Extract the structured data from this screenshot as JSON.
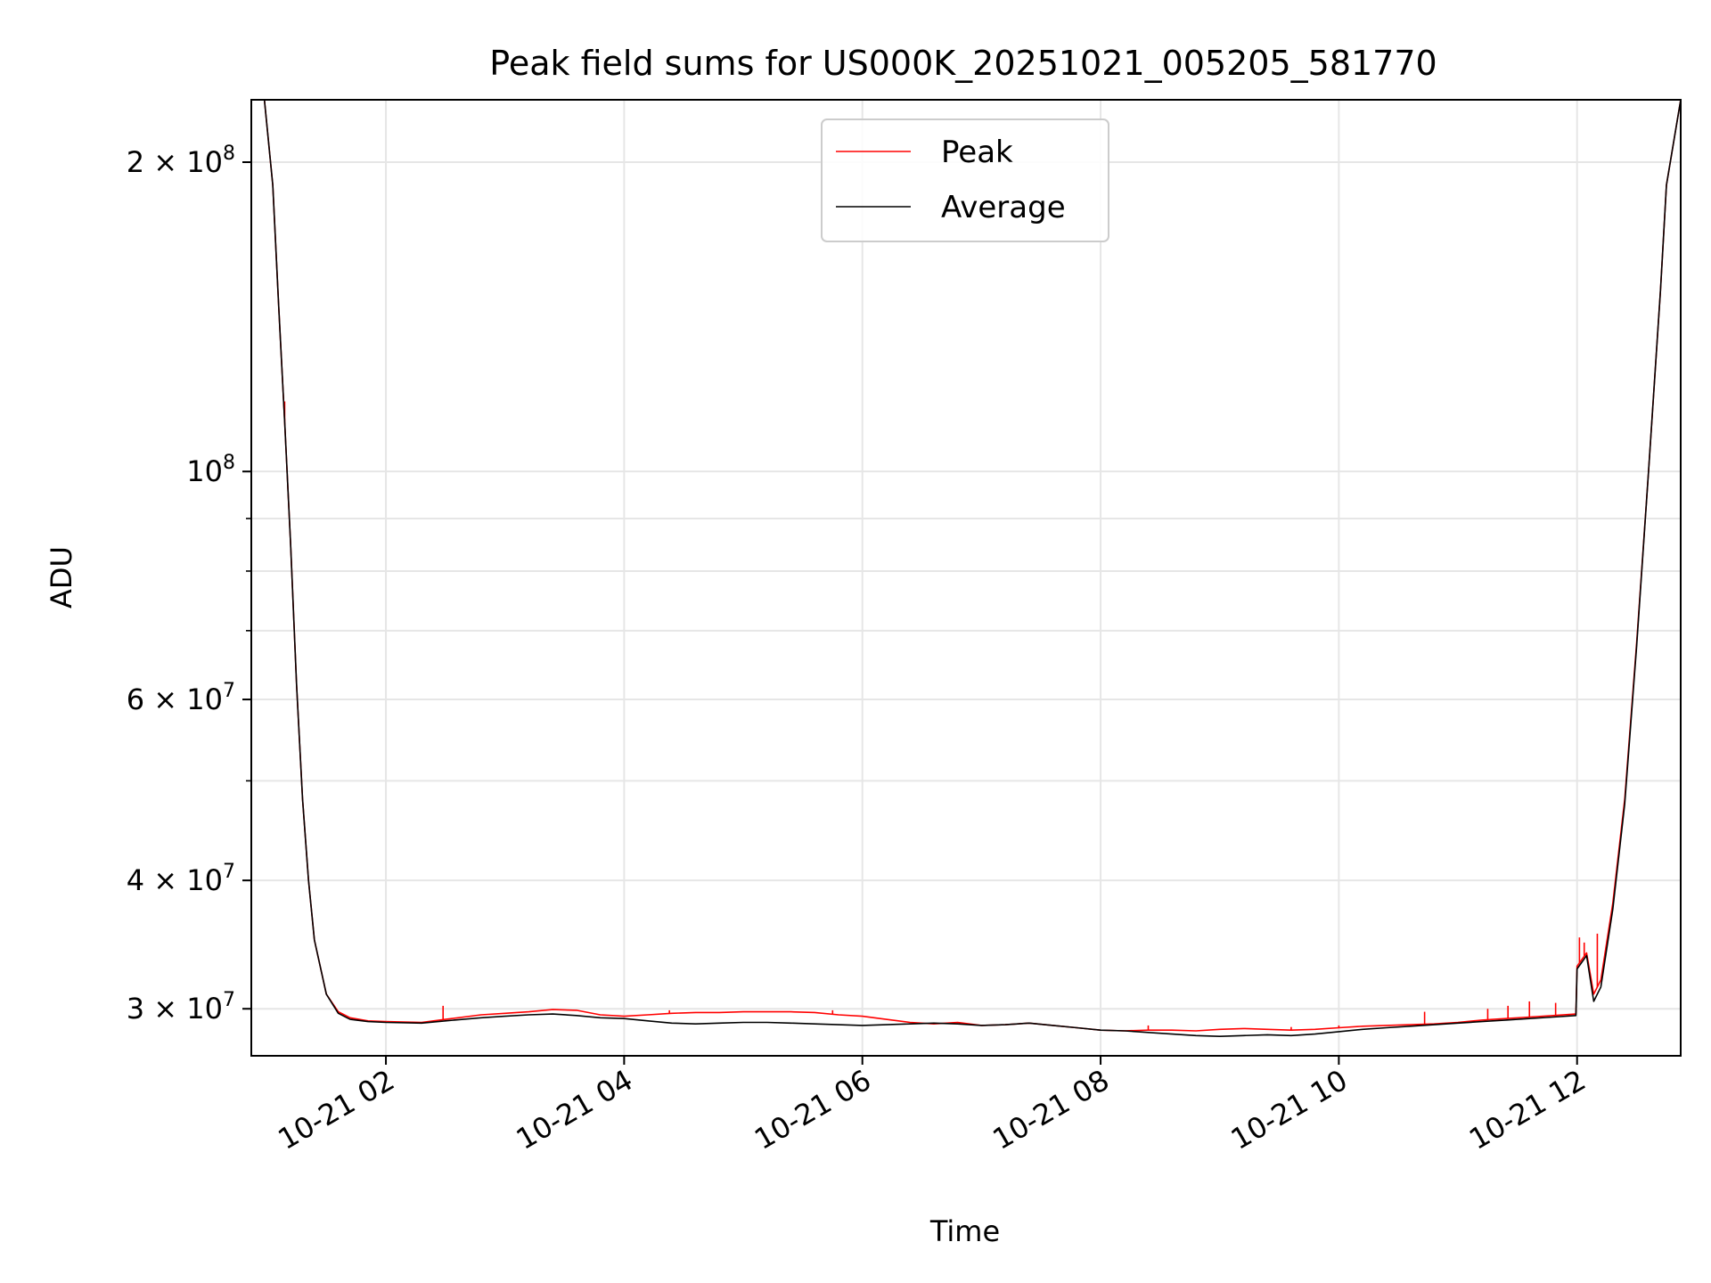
{
  "chart_data": {
    "type": "line",
    "title": "Peak field sums for US000K_20251021_005205_581770",
    "xlabel": "Time",
    "ylabel": "ADU",
    "yscale": "log",
    "grid": true,
    "legend_position": "top-center",
    "x_unit": "hours after 2025-10-21 00:00",
    "xlim": [
      0.87,
      12.87
    ],
    "ylim": [
      27000000,
      230000000
    ],
    "x_ticks": [
      {
        "value": 2,
        "label": "10-21 02"
      },
      {
        "value": 4,
        "label": "10-21 04"
      },
      {
        "value": 6,
        "label": "10-21 06"
      },
      {
        "value": 8,
        "label": "10-21 08"
      },
      {
        "value": 10,
        "label": "10-21 10"
      },
      {
        "value": 12,
        "label": "10-21 12"
      }
    ],
    "y_major_ticks": [
      {
        "value": 30000000,
        "mant": "3",
        "exp": "7"
      },
      {
        "value": 40000000,
        "mant": "4",
        "exp": "7"
      },
      {
        "value": 60000000,
        "mant": "6",
        "exp": "7"
      },
      {
        "value": 100000000,
        "mant": "",
        "exp": "8"
      },
      {
        "value": 200000000,
        "mant": "2",
        "exp": "8"
      }
    ],
    "y_minor_ticks": [
      50000000,
      70000000,
      80000000,
      90000000
    ],
    "series": [
      {
        "name": "Peak",
        "color": "#ff0000",
        "x": [
          0.87,
          0.98,
          1.05,
          1.1,
          1.15,
          1.2,
          1.25,
          1.3,
          1.35,
          1.4,
          1.5,
          1.6,
          1.7,
          1.85,
          2.0,
          2.3,
          2.5,
          2.8,
          3.0,
          3.2,
          3.4,
          3.6,
          3.8,
          4.0,
          4.2,
          4.4,
          4.6,
          4.8,
          5.0,
          5.2,
          5.4,
          5.6,
          5.8,
          6.0,
          6.2,
          6.4,
          6.6,
          6.8,
          7.0,
          7.2,
          7.4,
          7.6,
          7.8,
          8.0,
          8.2,
          8.4,
          8.6,
          8.8,
          9.0,
          9.2,
          9.4,
          9.6,
          9.8,
          10.0,
          10.2,
          10.4,
          10.6,
          10.8,
          11.0,
          11.2,
          11.4,
          11.6,
          11.8,
          11.99,
          12.0,
          12.08,
          12.14,
          12.2,
          12.3,
          12.4,
          12.5,
          12.6,
          12.7,
          12.75,
          12.87
        ],
        "y": [
          230000000,
          230000000,
          190000000,
          145000000,
          112000000,
          85000000,
          62000000,
          48000000,
          40000000,
          35000000,
          31000000,
          29800000,
          29400000,
          29200000,
          29150000,
          29100000,
          29300000,
          29600000,
          29700000,
          29800000,
          29950000,
          29900000,
          29600000,
          29500000,
          29600000,
          29700000,
          29750000,
          29750000,
          29800000,
          29800000,
          29800000,
          29750000,
          29600000,
          29500000,
          29300000,
          29100000,
          29000000,
          29100000,
          28900000,
          28950000,
          29050000,
          28900000,
          28750000,
          28600000,
          28550000,
          28600000,
          28600000,
          28550000,
          28650000,
          28700000,
          28650000,
          28600000,
          28650000,
          28750000,
          28850000,
          28900000,
          28950000,
          29000000,
          29100000,
          29250000,
          29350000,
          29450000,
          29550000,
          29650000,
          33000000,
          34000000,
          31000000,
          32000000,
          38000000,
          48000000,
          68000000,
          100000000,
          150000000,
          190000000,
          230000000
        ],
        "spikes": [
          {
            "x": 1.15,
            "y": 117000000
          },
          {
            "x": 2.48,
            "y": 30200000
          },
          {
            "x": 4.38,
            "y": 29900000
          },
          {
            "x": 5.75,
            "y": 29900000
          },
          {
            "x": 8.4,
            "y": 28900000
          },
          {
            "x": 9.6,
            "y": 28800000
          },
          {
            "x": 10.0,
            "y": 28900000
          },
          {
            "x": 10.72,
            "y": 29800000
          },
          {
            "x": 11.25,
            "y": 30000000
          },
          {
            "x": 11.42,
            "y": 30200000
          },
          {
            "x": 11.6,
            "y": 30500000
          },
          {
            "x": 11.82,
            "y": 30400000
          },
          {
            "x": 12.02,
            "y": 35200000
          },
          {
            "x": 12.06,
            "y": 34800000
          },
          {
            "x": 12.17,
            "y": 35500000
          }
        ]
      },
      {
        "name": "Average",
        "color": "#000000",
        "x": [
          0.87,
          0.98,
          1.05,
          1.1,
          1.15,
          1.2,
          1.25,
          1.3,
          1.35,
          1.4,
          1.5,
          1.6,
          1.7,
          1.85,
          2.0,
          2.3,
          2.5,
          2.8,
          3.0,
          3.2,
          3.4,
          3.6,
          3.8,
          4.0,
          4.2,
          4.4,
          4.6,
          4.8,
          5.0,
          5.2,
          5.4,
          5.6,
          5.8,
          6.0,
          6.2,
          6.4,
          6.6,
          6.8,
          7.0,
          7.2,
          7.4,
          7.6,
          7.8,
          8.0,
          8.2,
          8.4,
          8.6,
          8.8,
          9.0,
          9.2,
          9.4,
          9.6,
          9.8,
          10.0,
          10.2,
          10.4,
          10.6,
          10.8,
          11.0,
          11.2,
          11.4,
          11.6,
          11.8,
          11.99,
          12.0,
          12.08,
          12.14,
          12.2,
          12.3,
          12.4,
          12.5,
          12.6,
          12.7,
          12.75,
          12.87
        ],
        "y": [
          230000000,
          230000000,
          190000000,
          145000000,
          112000000,
          85000000,
          62000000,
          48000000,
          40000000,
          35000000,
          31000000,
          29700000,
          29300000,
          29150000,
          29100000,
          29050000,
          29200000,
          29400000,
          29500000,
          29600000,
          29650000,
          29550000,
          29400000,
          29350000,
          29200000,
          29050000,
          29000000,
          29050000,
          29100000,
          29100000,
          29050000,
          29000000,
          28950000,
          28900000,
          28950000,
          29000000,
          29050000,
          29000000,
          28900000,
          28950000,
          29050000,
          28900000,
          28750000,
          28600000,
          28550000,
          28450000,
          28350000,
          28250000,
          28200000,
          28250000,
          28300000,
          28250000,
          28350000,
          28500000,
          28650000,
          28750000,
          28850000,
          28950000,
          29050000,
          29150000,
          29250000,
          29350000,
          29450000,
          29550000,
          32800000,
          33800000,
          30500000,
          31500000,
          37500000,
          47500000,
          67500000,
          100000000,
          150000000,
          190000000,
          230000000
        ]
      }
    ]
  }
}
